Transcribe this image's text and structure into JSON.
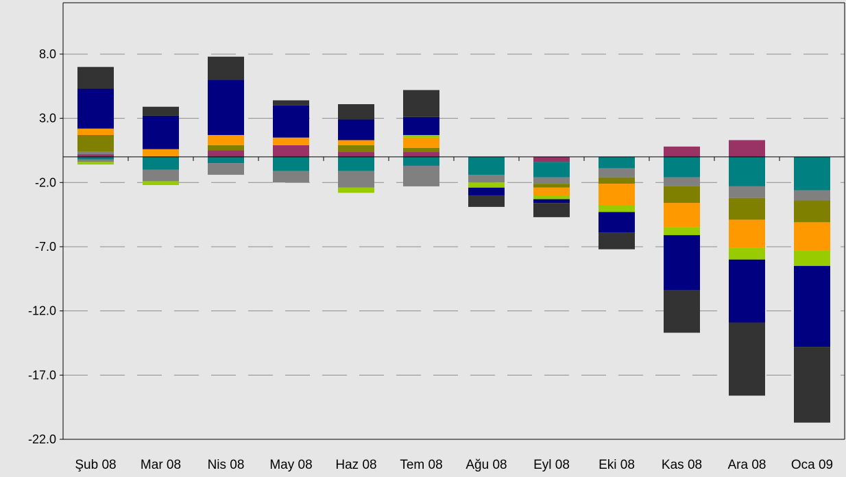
{
  "chart_data": {
    "type": "bar",
    "stacked": true,
    "categories": [
      "Şub 08",
      "Mar 08",
      "Nis 08",
      "May 08",
      "Haz 08",
      "Tem 08",
      "Ağu 08",
      "Eyl 08",
      "Eki 08",
      "Kas 08",
      "Ara 08",
      "Oca 09"
    ],
    "ylim": [
      -22,
      12
    ],
    "yticks": [
      8,
      3,
      -2,
      -7,
      -12,
      -17,
      -22
    ],
    "ytick_labels": [
      "8.0",
      "3.0",
      "-2.0",
      "-7.0",
      "-12.0",
      "-17.0",
      "-22.0"
    ],
    "grid": "dashed-horizontal",
    "series": [
      {
        "color": "#993366",
        "values": [
          0.2,
          0.0,
          0.5,
          0.9,
          0.4,
          0.4,
          0.0,
          -0.4,
          0.0,
          0.8,
          1.3,
          0.0
        ]
      },
      {
        "color": "#808080",
        "values": [
          0.2,
          0.0,
          0.0,
          0.0,
          0.0,
          0.0,
          0.0,
          0.0,
          0.0,
          0.0,
          0.0,
          0.0
        ]
      },
      {
        "color": "#808000",
        "values": [
          1.3,
          0.0,
          0.4,
          0.0,
          0.5,
          0.3,
          0.0,
          0.0,
          0.0,
          0.0,
          0.0,
          0.0
        ]
      },
      {
        "color": "#ff9900",
        "values": [
          0.5,
          0.6,
          0.8,
          0.6,
          0.4,
          0.8,
          0.0,
          0.0,
          0.0,
          0.0,
          0.0,
          0.0
        ]
      },
      {
        "color": "#99cc00",
        "values": [
          0.0,
          0.0,
          0.0,
          0.0,
          0.0,
          0.2,
          0.0,
          0.0,
          0.0,
          0.0,
          0.0,
          0.0
        ]
      },
      {
        "color": "#000080",
        "values": [
          3.1,
          2.6,
          4.3,
          2.5,
          1.6,
          1.4,
          0.0,
          0.0,
          0.0,
          0.0,
          0.0,
          0.0
        ]
      },
      {
        "color": "#333333",
        "values": [
          1.7,
          0.7,
          1.8,
          0.4,
          1.2,
          2.1,
          0.0,
          0.0,
          0.0,
          0.0,
          0.0,
          0.0
        ]
      },
      {
        "color": "#008080",
        "values": [
          -0.2,
          -1.0,
          -0.5,
          -1.1,
          -1.1,
          -0.7,
          -1.4,
          -1.2,
          -0.9,
          -1.6,
          -2.3,
          -2.6
        ]
      },
      {
        "color": "#808080",
        "values": [
          -0.2,
          -0.9,
          -0.9,
          -0.9,
          -1.3,
          -1.6,
          -0.6,
          -0.5,
          -0.7,
          -0.7,
          -0.9,
          -0.8
        ]
      },
      {
        "color": "#808000",
        "values": [
          0.0,
          0.0,
          0.0,
          0.0,
          0.0,
          0.0,
          0.0,
          -0.3,
          -0.5,
          -1.3,
          -1.7,
          -1.7
        ]
      },
      {
        "color": "#ff9900",
        "values": [
          0.0,
          0.0,
          0.0,
          0.0,
          0.0,
          0.0,
          0.0,
          -0.6,
          -1.7,
          -1.9,
          -2.2,
          -2.2
        ]
      },
      {
        "color": "#99cc00",
        "values": [
          -0.2,
          -0.3,
          0.0,
          0.0,
          -0.4,
          0.0,
          -0.4,
          -0.3,
          -0.5,
          -0.6,
          -0.9,
          -1.2
        ]
      },
      {
        "color": "#000080",
        "values": [
          0.0,
          0.0,
          0.0,
          0.0,
          0.0,
          0.0,
          -0.6,
          -0.3,
          -1.6,
          -4.3,
          -4.9,
          -6.3
        ]
      },
      {
        "color": "#333333",
        "values": [
          0.0,
          0.0,
          0.0,
          0.0,
          0.0,
          0.0,
          -0.9,
          -1.1,
          -1.3,
          -3.3,
          -5.7,
          -5.9
        ]
      }
    ]
  }
}
